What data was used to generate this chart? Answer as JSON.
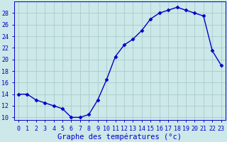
{
  "x": [
    0,
    1,
    2,
    3,
    4,
    5,
    6,
    7,
    8,
    9,
    10,
    11,
    12,
    13,
    14,
    15,
    16,
    17,
    18,
    19,
    20,
    21,
    22,
    23
  ],
  "y": [
    14,
    14,
    13,
    12.5,
    12,
    11.5,
    10,
    10,
    10.5,
    13,
    16.5,
    20.5,
    22.5,
    23.5,
    25,
    27,
    28,
    28.5,
    29,
    28.5,
    28,
    27.5,
    21.5,
    19
  ],
  "line_color": "#0000cc",
  "marker": "D",
  "marker_size": 2.5,
  "bg_color": "#cce8e8",
  "grid_color": "#aacccc",
  "xlabel": "Graphe des températures (°c)",
  "xlabel_fontsize": 7.5,
  "ylim": [
    9.5,
    30
  ],
  "xlim": [
    -0.5,
    23.5
  ],
  "yticks": [
    10,
    12,
    14,
    16,
    18,
    20,
    22,
    24,
    26,
    28
  ],
  "xtick_labels": [
    "0",
    "1",
    "2",
    "3",
    "4",
    "5",
    "6",
    "7",
    "8",
    "9",
    "10",
    "11",
    "12",
    "13",
    "14",
    "15",
    "16",
    "17",
    "18",
    "19",
    "20",
    "21",
    "22",
    "23"
  ],
  "tick_color": "#0000cc",
  "tick_fontsize": 6,
  "axis_color": "#0000cc",
  "linewidth": 1.0
}
